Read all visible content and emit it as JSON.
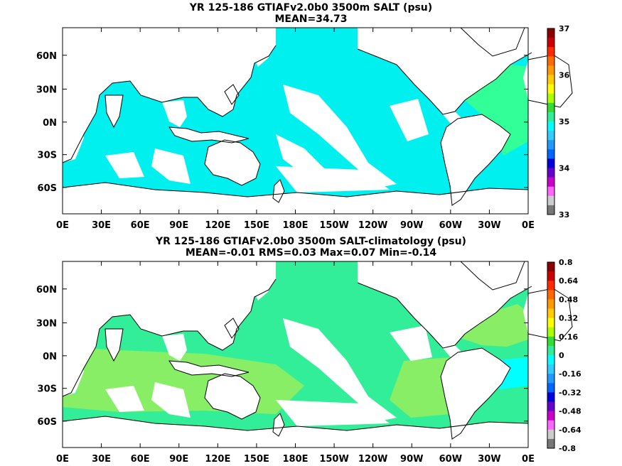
{
  "maps": [
    {
      "title_line1": "YR 125-186 GTIAFv2.0b0 3500m SALT (psu)",
      "title_line2": "MEAN=34.73",
      "lat_labels": [
        "60N",
        "30N",
        "0N",
        "30S",
        "60S"
      ],
      "lon_labels": [
        "0E",
        "30E",
        "60E",
        "90E",
        "120E",
        "150E",
        "180E",
        "150W",
        "120W",
        "90W",
        "60W",
        "30W",
        "0E"
      ],
      "colorbar_labels": [
        "37",
        "36",
        "35",
        "34",
        "33"
      ],
      "colorbar_colors": [
        "#8b0000",
        "#cc0000",
        "#ff2a00",
        "#ff6a00",
        "#ff9a00",
        "#ffcc00",
        "#ffff00",
        "#aaff00",
        "#33dd33",
        "#33ee99",
        "#00ffff",
        "#33ccff",
        "#2299ff",
        "#0066ff",
        "#0000dd",
        "#6600cc",
        "#cc00cc",
        "#ff66ff",
        "#cccccc",
        "#777777"
      ],
      "colors": {
        "ocean_main": "#00f0f0",
        "ocean_secondary": "#33ff99",
        "land": "#ffffff"
      }
    },
    {
      "title_line1": "YR 125-186 GTIAFv2.0b0 3500m SALT-climatology (psu)",
      "title_line2": "MEAN=-0.01   RMS=0.03   Max=0.07   Min=-0.14",
      "lat_labels": [
        "60N",
        "30N",
        "0N",
        "30S",
        "60S"
      ],
      "lon_labels": [
        "0E",
        "30E",
        "60E",
        "90E",
        "120E",
        "150E",
        "180E",
        "150W",
        "120W",
        "90W",
        "60W",
        "30W",
        "0E"
      ],
      "colorbar_labels": [
        "0.8",
        "0.64",
        "0.48",
        "0.32",
        "0.16",
        "0",
        "-0.16",
        "-0.32",
        "-0.48",
        "-0.64",
        "-0.8"
      ],
      "colorbar_colors": [
        "#8b0000",
        "#cc0000",
        "#ff2a00",
        "#ff6a00",
        "#ff9a00",
        "#ffcc00",
        "#ffff00",
        "#aaff00",
        "#33dd33",
        "#33ee99",
        "#00ffff",
        "#33ccff",
        "#2299ff",
        "#0066ff",
        "#0000dd",
        "#6600cc",
        "#cc00cc",
        "#ff66ff",
        "#cccccc",
        "#777777"
      ],
      "colors": {
        "ocean_main": "#33ee99",
        "ocean_secondary": "#88ee66",
        "ocean_negative": "#00ffff",
        "land": "#ffffff"
      }
    }
  ]
}
